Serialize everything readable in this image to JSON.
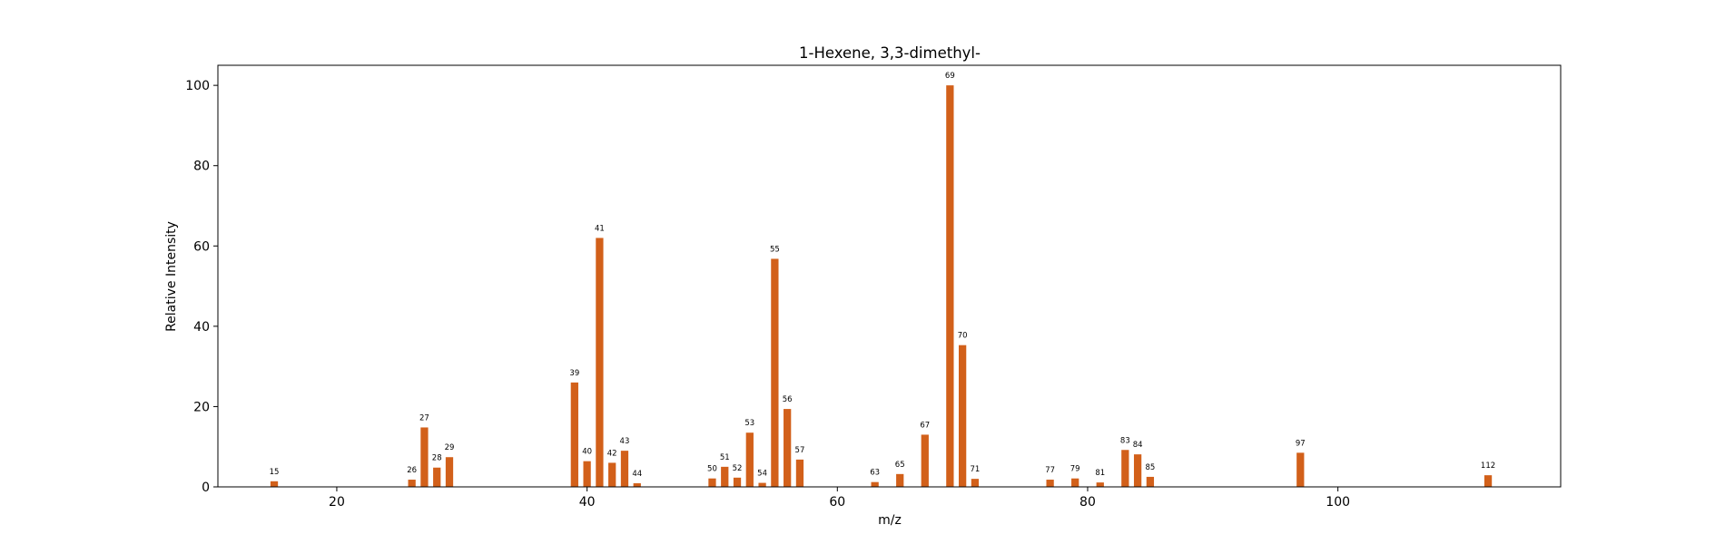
{
  "chart_data": {
    "type": "bar",
    "title": "1-Hexene, 3,3-dimethyl-",
    "xlabel": "m/z",
    "ylabel": "Relative Intensity",
    "xlim": [
      10.5,
      117.8
    ],
    "ylim": [
      0,
      105
    ],
    "xticks": [
      20,
      40,
      60,
      80,
      100
    ],
    "yticks": [
      0,
      20,
      40,
      60,
      80,
      100
    ],
    "grid": false,
    "bar_color": "#d2601a",
    "x": [
      15,
      26,
      27,
      28,
      29,
      39,
      40,
      41,
      42,
      43,
      44,
      50,
      51,
      52,
      53,
      54,
      55,
      56,
      57,
      63,
      65,
      67,
      69,
      70,
      71,
      77,
      79,
      81,
      83,
      84,
      85,
      97,
      112
    ],
    "values": [
      1.4,
      1.8,
      14.8,
      4.8,
      7.4,
      26.0,
      6.4,
      62.0,
      6.0,
      9.0,
      0.9,
      2.1,
      5.0,
      2.3,
      13.5,
      1.0,
      56.8,
      19.4,
      6.8,
      1.2,
      3.2,
      13.0,
      100,
      35.3,
      2.0,
      1.8,
      2.1,
      1.1,
      9.2,
      8.1,
      2.5,
      8.5,
      2.9
    ],
    "labels": [
      "15",
      "26",
      "27",
      "28",
      "29",
      "39",
      "40",
      "41",
      "42",
      "43",
      "44",
      "50",
      "51",
      "52",
      "53",
      "54",
      "55",
      "56",
      "57",
      "63",
      "65",
      "67",
      "69",
      "70",
      "71",
      "77",
      "79",
      "81",
      "83",
      "84",
      "85",
      "97",
      "112"
    ]
  }
}
